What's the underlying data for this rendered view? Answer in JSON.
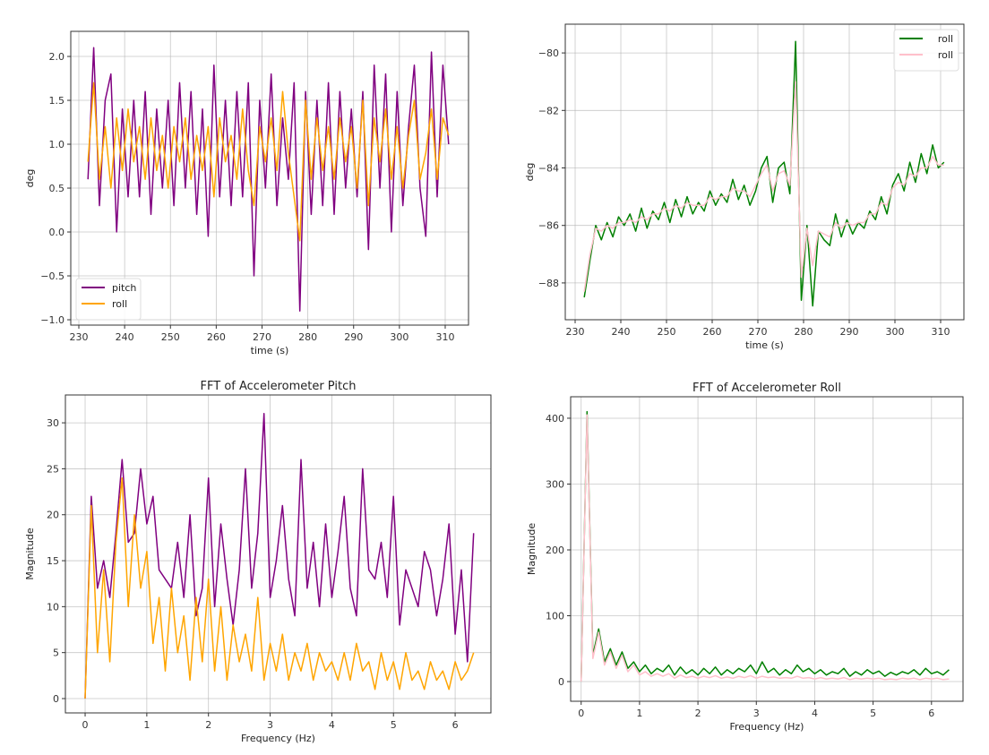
{
  "chart_data": [
    {
      "type": "line",
      "title": "",
      "xlabel": "time (s)",
      "ylabel": "deg",
      "xlim": [
        228.24,
        315.09
      ],
      "ylim": [
        -1.061,
        2.286
      ],
      "xticks": [
        230,
        240,
        250,
        260,
        270,
        280,
        290,
        300,
        310
      ],
      "xtick_labels": [
        "230",
        "240",
        "250",
        "260",
        "270",
        "280",
        "290",
        "300",
        "310"
      ],
      "yticks": [
        -1.0,
        -0.5,
        0.0,
        0.5,
        1.0,
        1.5,
        2.0
      ],
      "ytick_labels": [
        "−1.0",
        "−0.5",
        "0.0",
        "0.5",
        "1.0",
        "1.5",
        "2.0"
      ],
      "grid": true,
      "legend": "lower-left",
      "x": [
        232,
        233.25,
        234.5,
        235.75,
        237,
        238.25,
        239.5,
        240.75,
        242,
        243.25,
        244.5,
        245.75,
        247,
        248.25,
        249.5,
        250.75,
        252,
        253.25,
        254.5,
        255.75,
        257,
        258.25,
        259.5,
        260.75,
        262,
        263.25,
        264.5,
        265.75,
        267,
        268.25,
        269.5,
        270.75,
        272,
        273.25,
        274.5,
        275.75,
        277,
        278.25,
        279.5,
        280.75,
        282,
        283.25,
        284.5,
        285.75,
        287,
        288.25,
        289.5,
        290.75,
        292,
        293.25,
        294.5,
        295.75,
        297,
        298.25,
        299.5,
        300.75,
        302,
        303.25,
        304.5,
        305.75,
        307,
        308.25,
        309.5,
        310.75
      ],
      "series": [
        {
          "name": "pitch",
          "color": "#800080",
          "values": [
            0.6,
            2.1,
            0.3,
            1.5,
            1.8,
            0.0,
            1.4,
            0.4,
            1.5,
            0.4,
            1.6,
            0.2,
            1.4,
            0.5,
            1.5,
            0.3,
            1.7,
            0.5,
            1.6,
            0.2,
            1.4,
            -0.05,
            1.9,
            0.4,
            1.5,
            0.3,
            1.6,
            0.4,
            1.7,
            -0.5,
            1.5,
            0.5,
            1.8,
            0.3,
            1.3,
            0.6,
            1.7,
            -0.9,
            1.6,
            0.2,
            1.5,
            0.3,
            1.7,
            0.2,
            1.6,
            0.5,
            1.4,
            0.4,
            1.6,
            -0.2,
            1.9,
            0.5,
            1.8,
            0.0,
            1.6,
            0.3,
            1.2,
            1.9,
            0.5,
            -0.05,
            2.05,
            0.4,
            1.9,
            1.0
          ]
        },
        {
          "name": "roll",
          "color": "#FFA500",
          "values": [
            0.8,
            1.7,
            0.6,
            1.2,
            0.5,
            1.3,
            0.7,
            1.4,
            0.8,
            1.2,
            0.6,
            1.3,
            0.7,
            1.1,
            0.5,
            1.2,
            0.8,
            1.3,
            0.6,
            1.1,
            0.7,
            1.2,
            0.4,
            1.3,
            0.8,
            1.1,
            0.6,
            1.4,
            0.7,
            0.3,
            1.2,
            0.8,
            1.3,
            0.7,
            1.6,
            0.9,
            0.4,
            -0.1,
            1.5,
            0.6,
            1.3,
            0.7,
            1.2,
            0.6,
            1.3,
            0.8,
            1.2,
            0.5,
            1.5,
            0.3,
            1.3,
            0.8,
            1.4,
            0.6,
            1.2,
            0.5,
            1.1,
            1.5,
            0.6,
            0.9,
            1.4,
            0.6,
            1.3,
            1.1
          ]
        }
      ]
    },
    {
      "type": "line",
      "title": "",
      "xlabel": "time (s)",
      "ylabel": "deg",
      "xlim": [
        227.84,
        315.1
      ],
      "ylim": [
        -89.28,
        -79.0
      ],
      "xticks": [
        230,
        240,
        250,
        260,
        270,
        280,
        290,
        300,
        310
      ],
      "xtick_labels": [
        "230",
        "240",
        "250",
        "260",
        "270",
        "280",
        "290",
        "300",
        "310"
      ],
      "yticks": [
        -88,
        -86,
        -84,
        -82,
        -80
      ],
      "ytick_labels": [
        "−88",
        "−86",
        "−84",
        "−82",
        "−80"
      ],
      "grid": true,
      "legend": "top-right",
      "x": [
        232,
        233.25,
        234.5,
        235.75,
        237,
        238.25,
        239.5,
        240.75,
        242,
        243.25,
        244.5,
        245.75,
        247,
        248.25,
        249.5,
        250.75,
        252,
        253.25,
        254.5,
        255.75,
        257,
        258.25,
        259.5,
        260.75,
        262,
        263.25,
        264.5,
        265.75,
        267,
        268.25,
        269.5,
        270.75,
        272,
        273.25,
        274.5,
        275.75,
        277,
        278.25,
        279.5,
        280.75,
        282,
        283.25,
        284.5,
        285.75,
        287,
        288.25,
        289.5,
        290.75,
        292,
        293.25,
        294.5,
        295.75,
        297,
        298.25,
        299.5,
        300.75,
        302,
        303.25,
        304.5,
        305.75,
        307,
        308.25,
        309.5,
        310.75
      ],
      "series": [
        {
          "name": "roll",
          "color": "#008000",
          "values": [
            -88.5,
            -87.2,
            -86.0,
            -86.5,
            -85.9,
            -86.4,
            -85.7,
            -86.0,
            -85.6,
            -86.2,
            -85.4,
            -86.1,
            -85.5,
            -85.8,
            -85.2,
            -85.9,
            -85.1,
            -85.7,
            -85.0,
            -85.6,
            -85.2,
            -85.5,
            -84.8,
            -85.3,
            -84.9,
            -85.2,
            -84.4,
            -85.1,
            -84.6,
            -85.3,
            -84.8,
            -84.0,
            -83.6,
            -85.2,
            -84.0,
            -83.8,
            -84.9,
            -79.6,
            -88.6,
            -86.0,
            -88.8,
            -86.2,
            -86.5,
            -86.7,
            -85.6,
            -86.4,
            -85.8,
            -86.3,
            -85.9,
            -86.1,
            -85.5,
            -85.8,
            -85.0,
            -85.6,
            -84.6,
            -84.2,
            -84.8,
            -83.8,
            -84.5,
            -83.5,
            -84.2,
            -83.2,
            -84.0,
            -83.8
          ]
        },
        {
          "name": "roll",
          "color": "#FFC0CB",
          "values": [
            -88.3,
            -87.0,
            -86.1,
            -86.2,
            -86.0,
            -86.1,
            -85.9,
            -85.9,
            -85.8,
            -85.9,
            -85.7,
            -85.8,
            -85.6,
            -85.6,
            -85.4,
            -85.5,
            -85.3,
            -85.4,
            -85.2,
            -85.3,
            -85.3,
            -85.3,
            -85.0,
            -85.1,
            -85.0,
            -85.0,
            -84.7,
            -84.8,
            -84.8,
            -85.0,
            -84.6,
            -84.2,
            -83.9,
            -84.8,
            -84.2,
            -84.1,
            -84.6,
            -81.0,
            -87.8,
            -86.1,
            -87.4,
            -86.2,
            -86.3,
            -86.4,
            -85.9,
            -86.1,
            -85.9,
            -86.0,
            -85.9,
            -85.9,
            -85.6,
            -85.6,
            -85.2,
            -85.3,
            -84.7,
            -84.5,
            -84.6,
            -84.2,
            -84.3,
            -84.0,
            -84.0,
            -83.6,
            -83.9,
            -83.9
          ]
        }
      ]
    },
    {
      "type": "line",
      "title": "FFT of Accelerometer Pitch",
      "xlabel": "Frequency (Hz)",
      "ylabel": "Magnitude",
      "xlim": [
        -0.32,
        6.58
      ],
      "ylim": [
        -1.56,
        33.03
      ],
      "xticks": [
        0,
        1,
        2,
        3,
        4,
        5,
        6
      ],
      "xtick_labels": [
        "0",
        "1",
        "2",
        "3",
        "4",
        "5",
        "6"
      ],
      "yticks": [
        0,
        5,
        10,
        15,
        20,
        25,
        30
      ],
      "ytick_labels": [
        "0",
        "5",
        "10",
        "15",
        "20",
        "25",
        "30"
      ],
      "grid": true,
      "x": [
        0,
        0.1,
        0.2,
        0.3,
        0.4,
        0.5,
        0.6,
        0.7,
        0.8,
        0.9,
        1.0,
        1.1,
        1.2,
        1.3,
        1.4,
        1.5,
        1.6,
        1.7,
        1.8,
        1.9,
        2.0,
        2.1,
        2.2,
        2.3,
        2.4,
        2.5,
        2.6,
        2.7,
        2.8,
        2.9,
        3.0,
        3.1,
        3.2,
        3.3,
        3.4,
        3.5,
        3.6,
        3.7,
        3.8,
        3.9,
        4.0,
        4.1,
        4.2,
        4.3,
        4.4,
        4.5,
        4.6,
        4.7,
        4.8,
        4.9,
        5.0,
        5.1,
        5.2,
        5.3,
        5.4,
        5.5,
        5.6,
        5.7,
        5.8,
        5.9,
        6.0,
        6.1,
        6.2,
        6.3
      ],
      "series": [
        {
          "color": "#800080",
          "values": [
            0,
            22,
            12,
            15,
            11,
            18,
            26,
            17,
            18,
            25,
            19,
            22,
            14,
            13,
            12,
            17,
            11,
            20,
            9,
            12,
            24,
            10,
            19,
            13,
            8,
            14,
            25,
            12,
            18,
            31,
            11,
            15,
            21,
            13,
            9,
            26,
            12,
            17,
            10,
            19,
            11,
            16,
            22,
            12,
            9,
            25,
            14,
            13,
            17,
            11,
            22,
            8,
            14,
            12,
            10,
            16,
            14,
            9,
            13,
            19,
            7,
            14,
            4,
            18
          ]
        },
        {
          "color": "#FFA500",
          "values": [
            0,
            21,
            5,
            14,
            4,
            17,
            24,
            10,
            20,
            12,
            16,
            6,
            11,
            3,
            12,
            5,
            9,
            2,
            11,
            4,
            13,
            3,
            10,
            2,
            8,
            4,
            7,
            3,
            11,
            2,
            6,
            3,
            7,
            2,
            5,
            3,
            6,
            2,
            5,
            3,
            4,
            2,
            5,
            2,
            6,
            3,
            4,
            1,
            5,
            2,
            4,
            1,
            5,
            2,
            3,
            1,
            4,
            2,
            3,
            1,
            4,
            2,
            3,
            5
          ]
        }
      ]
    },
    {
      "type": "line",
      "title": "FFT of Accelerometer Roll",
      "xlabel": "Frequency (Hz)",
      "ylabel": "Magnitude",
      "xlim": [
        -0.18,
        6.54
      ],
      "ylim": [
        -29.9,
        432.6
      ],
      "xticks": [
        0,
        1,
        2,
        3,
        4,
        5,
        6
      ],
      "xtick_labels": [
        "0",
        "1",
        "2",
        "3",
        "4",
        "5",
        "6"
      ],
      "yticks": [
        0,
        100,
        200,
        300,
        400
      ],
      "ytick_labels": [
        "0",
        "100",
        "200",
        "300",
        "400"
      ],
      "grid": true,
      "x": [
        0,
        0.1,
        0.2,
        0.3,
        0.4,
        0.5,
        0.6,
        0.7,
        0.8,
        0.9,
        1.0,
        1.1,
        1.2,
        1.3,
        1.4,
        1.5,
        1.6,
        1.7,
        1.8,
        1.9,
        2.0,
        2.1,
        2.2,
        2.3,
        2.4,
        2.5,
        2.6,
        2.7,
        2.8,
        2.9,
        3.0,
        3.1,
        3.2,
        3.3,
        3.4,
        3.5,
        3.6,
        3.7,
        3.8,
        3.9,
        4.0,
        4.1,
        4.2,
        4.3,
        4.4,
        4.5,
        4.6,
        4.7,
        4.8,
        4.9,
        5.0,
        5.1,
        5.2,
        5.3,
        5.4,
        5.5,
        5.6,
        5.7,
        5.8,
        5.9,
        6.0,
        6.1,
        6.2,
        6.3
      ],
      "series": [
        {
          "color": "#008000",
          "values": [
            0,
            410,
            40,
            80,
            30,
            50,
            25,
            45,
            20,
            30,
            15,
            25,
            12,
            20,
            15,
            25,
            10,
            22,
            12,
            18,
            10,
            20,
            12,
            22,
            10,
            18,
            12,
            20,
            15,
            25,
            12,
            30,
            14,
            20,
            10,
            18,
            12,
            25,
            15,
            20,
            12,
            18,
            10,
            15,
            12,
            20,
            8,
            15,
            10,
            18,
            12,
            16,
            8,
            14,
            10,
            15,
            12,
            18,
            10,
            20,
            12,
            15,
            10,
            18
          ]
        },
        {
          "color": "#FFC0CB",
          "values": [
            0,
            405,
            35,
            75,
            25,
            45,
            20,
            40,
            15,
            25,
            10,
            15,
            8,
            12,
            8,
            12,
            5,
            10,
            6,
            8,
            5,
            8,
            6,
            9,
            5,
            7,
            5,
            8,
            6,
            9,
            5,
            8,
            6,
            7,
            5,
            6,
            5,
            8,
            5,
            6,
            4,
            6,
            4,
            5,
            4,
            6,
            3,
            5,
            4,
            5,
            4,
            5,
            3,
            4,
            3,
            5,
            4,
            5,
            3,
            5,
            4,
            5,
            3,
            4
          ]
        }
      ]
    }
  ]
}
